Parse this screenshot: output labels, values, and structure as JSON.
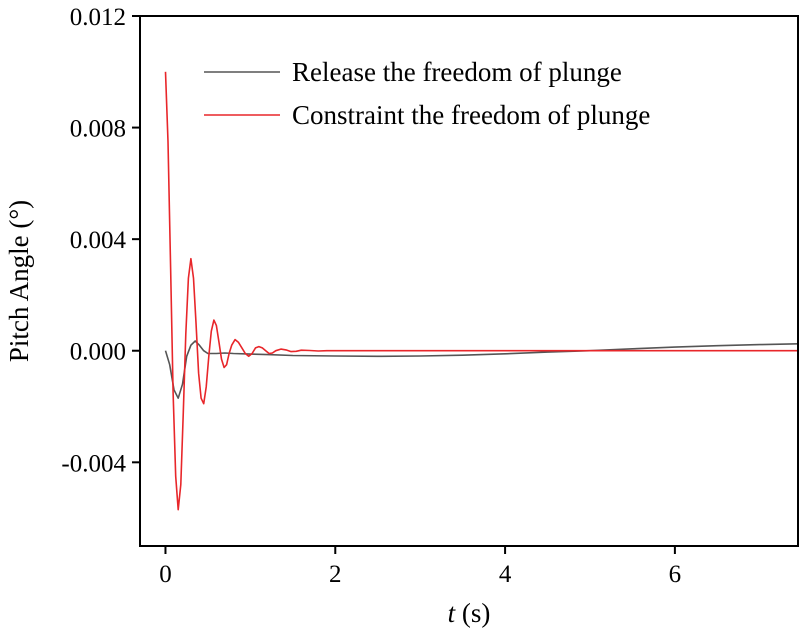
{
  "chart_data": {
    "type": "line",
    "title": "",
    "xlabel_var": "t",
    "xlabel_unit": " (s)",
    "ylabel": "Pitch Angle (°)",
    "xlim": [
      -0.3,
      7.45
    ],
    "ylim": [
      -0.007,
      0.012
    ],
    "xticks": [
      0,
      2,
      4,
      6
    ],
    "xtick_labels": [
      "0",
      "2",
      "4",
      "6"
    ],
    "yticks": [
      -0.004,
      0.0,
      0.004,
      0.008,
      0.012
    ],
    "ytick_labels": [
      "-0.004",
      "0.000",
      "0.004",
      "0.008",
      "0.012"
    ],
    "grid": false,
    "legend_position": "top-right",
    "series": [
      {
        "name": "Release the freedom of plunge",
        "color": "#555555",
        "x": [
          0,
          0.05,
          0.1,
          0.15,
          0.2,
          0.25,
          0.3,
          0.35,
          0.4,
          0.45,
          0.5,
          0.6,
          0.7,
          0.8,
          1.0,
          1.2,
          1.5,
          2.0,
          2.5,
          3.0,
          3.5,
          4.0,
          4.5,
          5.0,
          5.5,
          6.0,
          6.5,
          7.0,
          7.45
        ],
        "y": [
          0.0,
          -0.0005,
          -0.0014,
          -0.0017,
          -0.0012,
          -0.0002,
          0.0002,
          0.00035,
          0.0002,
          0.0,
          -0.0001,
          -0.0001,
          -8e-05,
          -0.0001,
          -0.00012,
          -0.00014,
          -0.00017,
          -0.00019,
          -0.0002,
          -0.00019,
          -0.00016,
          -0.00011,
          -5e-05,
          0.0,
          7e-05,
          0.00013,
          0.00018,
          0.00022,
          0.00025
        ]
      },
      {
        "name": "Constraint the freedom of plunge",
        "color": "#e8262a",
        "x": [
          0,
          0.03,
          0.06,
          0.09,
          0.12,
          0.15,
          0.18,
          0.21,
          0.24,
          0.27,
          0.3,
          0.33,
          0.36,
          0.39,
          0.42,
          0.45,
          0.48,
          0.51,
          0.54,
          0.57,
          0.6,
          0.63,
          0.66,
          0.69,
          0.72,
          0.75,
          0.78,
          0.82,
          0.86,
          0.9,
          0.94,
          0.98,
          1.02,
          1.06,
          1.1,
          1.14,
          1.18,
          1.22,
          1.26,
          1.3,
          1.36,
          1.42,
          1.48,
          1.54,
          1.6,
          1.7,
          1.8,
          1.9,
          2.0,
          2.2,
          2.4,
          2.6,
          3.0,
          4.0,
          5.0,
          6.0,
          7.0,
          7.45
        ],
        "y": [
          0.01,
          0.0075,
          0.003,
          -0.0015,
          -0.0045,
          -0.0057,
          -0.0048,
          -0.0022,
          0.0006,
          0.0026,
          0.0033,
          0.0026,
          0.001,
          -0.0008,
          -0.0017,
          -0.0019,
          -0.0013,
          -0.0002,
          0.0007,
          0.0011,
          0.0009,
          0.0003,
          -0.0003,
          -0.0006,
          -0.0005,
          -0.0001,
          0.0002,
          0.0004,
          0.0003,
          0.0001,
          -0.0001,
          -0.0002,
          -0.0001,
          0.0001,
          0.00015,
          0.0001,
          0.0,
          -0.0001,
          -8e-05,
          0.0,
          6e-05,
          3e-05,
          -3e-05,
          -2e-05,
          2e-05,
          1e-05,
          -1e-05,
          0.0,
          0.0,
          0.0,
          0.0,
          0.0,
          0.0,
          0.0,
          0.0,
          0.0,
          0.0,
          0.0
        ]
      }
    ]
  }
}
